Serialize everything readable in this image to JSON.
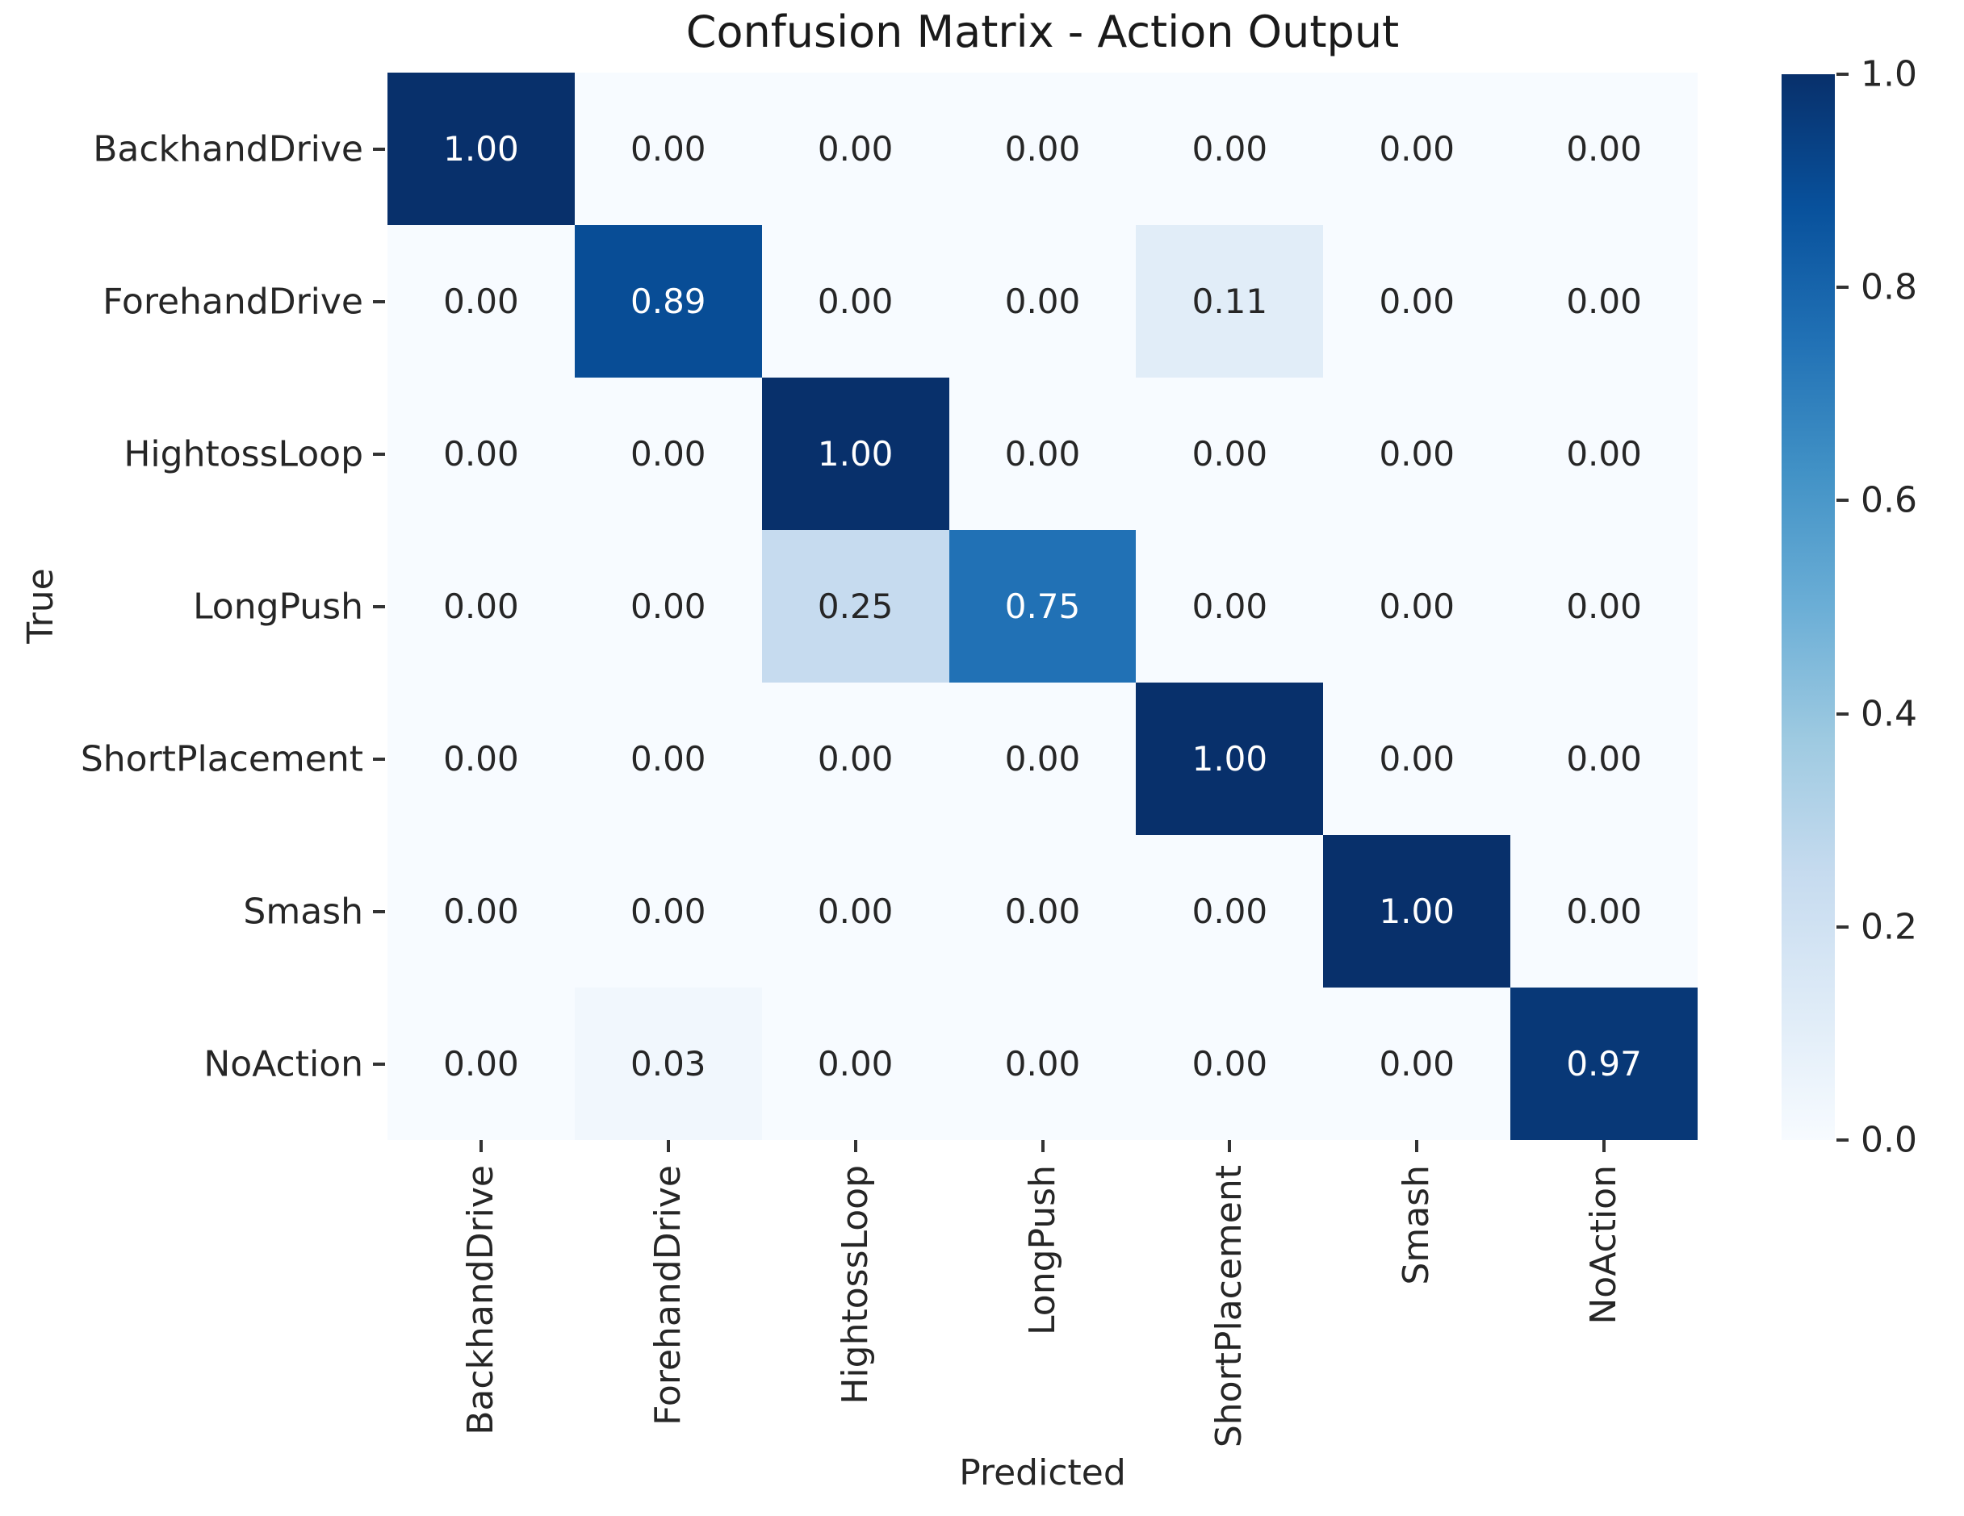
{
  "chart_data": {
    "type": "heatmap",
    "title": "Confusion Matrix - Action Output",
    "xlabel": "Predicted",
    "ylabel": "True",
    "x_categories": [
      "BackhandDrive",
      "ForehandDrive",
      "HightossLoop",
      "LongPush",
      "ShortPlacement",
      "Smash",
      "NoAction"
    ],
    "y_categories": [
      "BackhandDrive",
      "ForehandDrive",
      "HightossLoop",
      "LongPush",
      "ShortPlacement",
      "Smash",
      "NoAction"
    ],
    "matrix": [
      [
        1.0,
        0.0,
        0.0,
        0.0,
        0.0,
        0.0,
        0.0
      ],
      [
        0.0,
        0.89,
        0.0,
        0.0,
        0.11,
        0.0,
        0.0
      ],
      [
        0.0,
        0.0,
        1.0,
        0.0,
        0.0,
        0.0,
        0.0
      ],
      [
        0.0,
        0.0,
        0.25,
        0.75,
        0.0,
        0.0,
        0.0
      ],
      [
        0.0,
        0.0,
        0.0,
        0.0,
        1.0,
        0.0,
        0.0
      ],
      [
        0.0,
        0.0,
        0.0,
        0.0,
        0.0,
        1.0,
        0.0
      ],
      [
        0.0,
        0.03,
        0.0,
        0.0,
        0.0,
        0.0,
        0.97
      ]
    ],
    "value_decimals": 2,
    "vmin": 0,
    "vmax": 1,
    "colormap": "Blues",
    "colorbar_tick_labels": [
      "1.0",
      "0.8",
      "0.6",
      "0.4",
      "0.2",
      "0.0"
    ],
    "legend_position": "right-colorbar",
    "grid": false
  },
  "colors": {
    "background": "#ffffff",
    "label_text": "#262626",
    "annotation_dark": "#262626",
    "annotation_light": "#ffffff",
    "cmap_anchors": [
      "#f7fbff",
      "#deebf7",
      "#c6dbef",
      "#9ecae1",
      "#6baed6",
      "#4292c6",
      "#2171b5",
      "#08519c",
      "#08306b"
    ]
  }
}
